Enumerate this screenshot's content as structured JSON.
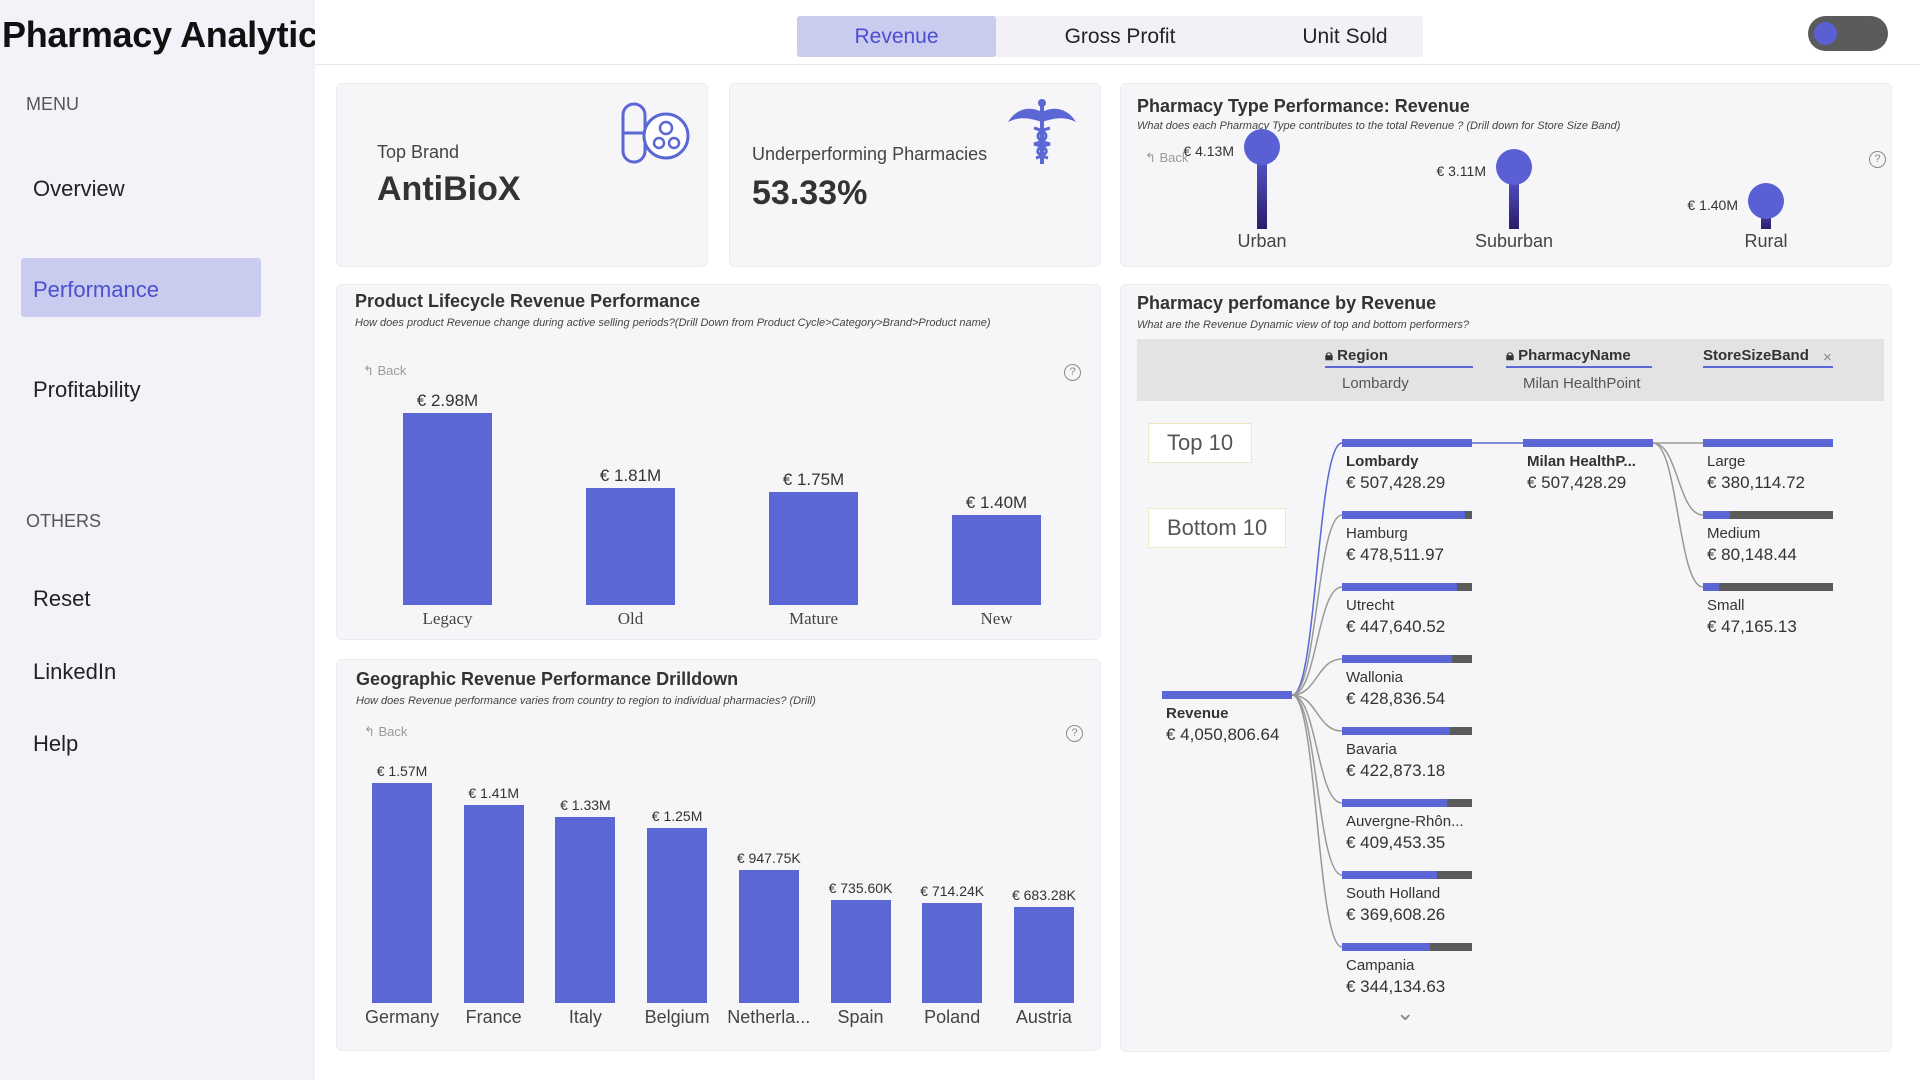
{
  "app": {
    "title": "Pharmacy Analytics",
    "menu_label": "MENU",
    "others_label": "OTHERS",
    "nav": [
      {
        "label": "Overview",
        "active": false
      },
      {
        "label": "Performance",
        "active": true
      },
      {
        "label": "Profitability",
        "active": false
      }
    ],
    "others": [
      {
        "label": "Reset"
      },
      {
        "label": "LinkedIn"
      },
      {
        "label": "Help"
      }
    ]
  },
  "tabs": [
    {
      "label": "Revenue",
      "active": true
    },
    {
      "label": "Gross Profit",
      "active": false
    },
    {
      "label": "Unit Sold",
      "active": false
    }
  ],
  "kpis": {
    "top_brand": {
      "label": "Top Brand",
      "value": "AntiBioX",
      "icon": "pill-gear-icon"
    },
    "underperforming": {
      "label": "Underperforming Pharmacies",
      "value": "53.33%",
      "icon": "caduceus-icon"
    }
  },
  "colors": {
    "accent": "#5a67d4",
    "accent_light": "#c9cbef",
    "dark_bar": "#5b5b5b"
  },
  "pharmacy_type": {
    "title": "Pharmacy Type Performance: Revenue",
    "subtitle": "What does each Pharmacy Type contributes to the total Revenue ? (Drill down for Store Size Band)",
    "back": "Back",
    "chart_data": {
      "type": "bar",
      "categories": [
        "Urban",
        "Suburban",
        "Rural"
      ],
      "values": [
        4.13,
        3.11,
        1.4
      ],
      "value_labels": [
        "€ 4.13M",
        "€ 3.11M",
        "€ 1.40M"
      ],
      "unit": "€M"
    }
  },
  "lifecycle": {
    "title": "Product Lifecycle Revenue Performance",
    "subtitle": "How does product Revenue change during active selling periods?(Drill Down from Product Cycle>Category>Brand>Product name)",
    "back": "Back",
    "chart_data": {
      "type": "bar",
      "categories": [
        "Legacy",
        "Old",
        "Mature",
        "New"
      ],
      "values": [
        2.98,
        1.81,
        1.75,
        1.4
      ],
      "value_labels": [
        "€ 2.98M",
        "€ 1.81M",
        "€ 1.75M",
        "€ 1.40M"
      ],
      "unit": "€M"
    }
  },
  "geographic": {
    "title": "Geographic Revenue Performance Drilldown",
    "subtitle": "How does Revenue performance varies from country to region to individual pharmacies? (Drill)",
    "back": "Back",
    "chart_data": {
      "type": "bar",
      "categories": [
        "Germany",
        "France",
        "Italy",
        "Belgium",
        "Netherla...",
        "Spain",
        "Poland",
        "Austria"
      ],
      "values": [
        1570,
        1410,
        1330,
        1250,
        947.75,
        735.6,
        714.24,
        683.28
      ],
      "value_labels": [
        "€ 1.57M",
        "€ 1.41M",
        "€ 1.33M",
        "€ 1.25M",
        "€ 947.75K",
        "€ 735.60K",
        "€ 714.24K",
        "€ 683.28K"
      ],
      "unit": "€K"
    }
  },
  "decomp": {
    "title": "Pharmacy perfomance by Revenue",
    "subtitle": "What are the Revenue Dynamic view of top and bottom performers?",
    "headers": [
      {
        "label": "Region",
        "value": "Lombardy",
        "locked": true
      },
      {
        "label": "PharmacyName",
        "value": "Milan HealthPoint",
        "locked": true
      },
      {
        "label": "StoreSizeBand",
        "value": "",
        "locked": false
      }
    ],
    "remove_glyph": "×",
    "top10": "Top 10",
    "bottom10": "Bottom 10",
    "root": {
      "name": "Revenue",
      "value": "€ 4,050,806.64",
      "ratio": 1.0
    },
    "regions": [
      {
        "name": "Lombardy",
        "value": "€ 507,428.29",
        "ratio": 1.0,
        "selected": true
      },
      {
        "name": "Hamburg",
        "value": "€ 478,511.97",
        "ratio": 0.943
      },
      {
        "name": "Utrecht",
        "value": "€ 447,640.52",
        "ratio": 0.882
      },
      {
        "name": "Wallonia",
        "value": "€ 428,836.54",
        "ratio": 0.845
      },
      {
        "name": "Bavaria",
        "value": "€ 422,873.18",
        "ratio": 0.833
      },
      {
        "name": "Auvergne-Rhôn...",
        "value": "€ 409,453.35",
        "ratio": 0.807
      },
      {
        "name": "South Holland",
        "value": "€ 369,608.26",
        "ratio": 0.728
      },
      {
        "name": "Campania",
        "value": "€ 344,134.63",
        "ratio": 0.678
      }
    ],
    "pharmacy": {
      "name": "Milan HealthP...",
      "value": "€ 507,428.29",
      "ratio": 1.0
    },
    "sizes": [
      {
        "name": "Large",
        "value": "€ 380,114.72",
        "ratio": 1.0
      },
      {
        "name": "Medium",
        "value": "€ 80,148.44",
        "ratio": 0.211
      },
      {
        "name": "Small",
        "value": "€ 47,165.13",
        "ratio": 0.124
      }
    ],
    "more_glyph": "⌄"
  }
}
